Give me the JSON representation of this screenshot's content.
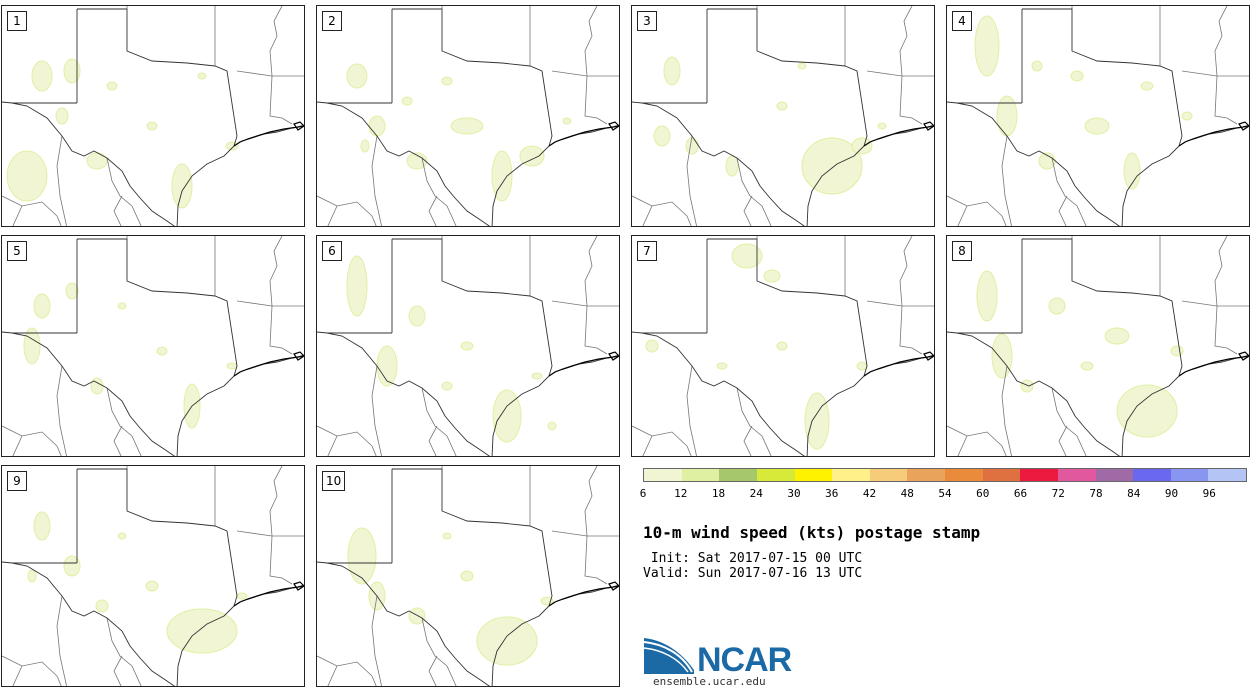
{
  "panels": [
    {
      "label": "1",
      "blobs": [
        [
          40,
          70,
          10,
          15
        ],
        [
          70,
          65,
          8,
          12
        ],
        [
          25,
          170,
          20,
          25
        ],
        [
          95,
          155,
          10,
          8
        ],
        [
          60,
          110,
          6,
          8
        ],
        [
          180,
          180,
          10,
          22
        ],
        [
          150,
          120,
          5,
          4
        ],
        [
          110,
          80,
          5,
          4
        ],
        [
          230,
          140,
          6,
          4
        ],
        [
          200,
          70,
          4,
          3
        ]
      ]
    },
    {
      "label": "2",
      "blobs": [
        [
          40,
          70,
          10,
          12
        ],
        [
          60,
          120,
          8,
          10
        ],
        [
          100,
          155,
          10,
          8
        ],
        [
          185,
          170,
          10,
          25
        ],
        [
          150,
          120,
          16,
          8
        ],
        [
          130,
          75,
          5,
          4
        ],
        [
          215,
          150,
          12,
          10
        ],
        [
          48,
          140,
          4,
          6
        ],
        [
          90,
          95,
          5,
          4
        ],
        [
          250,
          115,
          4,
          3
        ]
      ]
    },
    {
      "label": "3",
      "blobs": [
        [
          40,
          65,
          8,
          14
        ],
        [
          30,
          130,
          8,
          10
        ],
        [
          60,
          140,
          6,
          8
        ],
        [
          200,
          160,
          30,
          28
        ],
        [
          230,
          140,
          10,
          8
        ],
        [
          100,
          160,
          6,
          10
        ],
        [
          150,
          100,
          5,
          4
        ],
        [
          250,
          120,
          4,
          3
        ],
        [
          170,
          60,
          4,
          3
        ]
      ]
    },
    {
      "label": "4",
      "blobs": [
        [
          40,
          40,
          12,
          30
        ],
        [
          60,
          110,
          10,
          20
        ],
        [
          100,
          155,
          8,
          8
        ],
        [
          185,
          165,
          8,
          18
        ],
        [
          150,
          120,
          12,
          8
        ],
        [
          130,
          70,
          6,
          5
        ],
        [
          200,
          80,
          6,
          4
        ],
        [
          240,
          110,
          5,
          4
        ],
        [
          90,
          60,
          5,
          5
        ]
      ]
    },
    {
      "label": "5",
      "blobs": [
        [
          40,
          70,
          8,
          12
        ],
        [
          70,
          55,
          6,
          8
        ],
        [
          30,
          110,
          8,
          18
        ],
        [
          95,
          150,
          6,
          8
        ],
        [
          190,
          170,
          8,
          22
        ],
        [
          160,
          115,
          5,
          4
        ],
        [
          120,
          70,
          4,
          3
        ],
        [
          230,
          130,
          5,
          3
        ]
      ]
    },
    {
      "label": "6",
      "blobs": [
        [
          40,
          50,
          10,
          30
        ],
        [
          100,
          80,
          8,
          10
        ],
        [
          70,
          130,
          10,
          20
        ],
        [
          190,
          180,
          14,
          26
        ],
        [
          150,
          110,
          6,
          4
        ],
        [
          235,
          190,
          4,
          4
        ],
        [
          220,
          140,
          5,
          3
        ],
        [
          130,
          150,
          5,
          4
        ]
      ]
    },
    {
      "label": "7",
      "blobs": [
        [
          115,
          20,
          15,
          12
        ],
        [
          140,
          40,
          8,
          6
        ],
        [
          185,
          185,
          12,
          28
        ],
        [
          20,
          110,
          6,
          6
        ],
        [
          150,
          110,
          5,
          4
        ],
        [
          230,
          130,
          5,
          4
        ],
        [
          90,
          130,
          5,
          3
        ]
      ]
    },
    {
      "label": "8",
      "blobs": [
        [
          40,
          60,
          10,
          25
        ],
        [
          55,
          120,
          10,
          22
        ],
        [
          110,
          70,
          8,
          8
        ],
        [
          200,
          175,
          30,
          26
        ],
        [
          170,
          100,
          12,
          8
        ],
        [
          230,
          115,
          6,
          5
        ],
        [
          140,
          130,
          6,
          4
        ],
        [
          80,
          150,
          6,
          6
        ]
      ]
    },
    {
      "label": "9",
      "blobs": [
        [
          40,
          60,
          8,
          14
        ],
        [
          70,
          100,
          8,
          10
        ],
        [
          200,
          165,
          35,
          22
        ],
        [
          100,
          140,
          6,
          6
        ],
        [
          150,
          120,
          6,
          5
        ],
        [
          240,
          130,
          5,
          3
        ],
        [
          30,
          110,
          4,
          6
        ],
        [
          120,
          70,
          4,
          3
        ]
      ]
    },
    {
      "label": "10",
      "blobs": [
        [
          45,
          90,
          14,
          28
        ],
        [
          60,
          130,
          8,
          14
        ],
        [
          100,
          150,
          8,
          8
        ],
        [
          190,
          175,
          30,
          24
        ],
        [
          150,
          110,
          6,
          5
        ],
        [
          230,
          135,
          6,
          4
        ],
        [
          130,
          70,
          4,
          3
        ]
      ]
    }
  ],
  "legend": {
    "colors": [
      "#f1f5d4",
      "#dff0a2",
      "#a6c86b",
      "#d7ea3a",
      "#fff200",
      "#fff08a",
      "#f6cc7a",
      "#eaa35a",
      "#e98b3b",
      "#df7040",
      "#ec1a3e",
      "#e2589e",
      "#a06aa6",
      "#6a68ef",
      "#8896f2",
      "#b4c4f5"
    ],
    "ticks": [
      "6",
      "12",
      "18",
      "24",
      "30",
      "36",
      "42",
      "48",
      "54",
      "60",
      "66",
      "72",
      "78",
      "84",
      "90",
      "96"
    ]
  },
  "title": "10-m wind speed (kts) postage stamp",
  "init": " Init: Sat 2017-07-15 00 UTC",
  "valid": "Valid: Sun 2017-07-16 13 UTC",
  "logo": {
    "text": "NCAR",
    "color": "#1b6aa5"
  },
  "website": "ensemble.ucar.edu"
}
